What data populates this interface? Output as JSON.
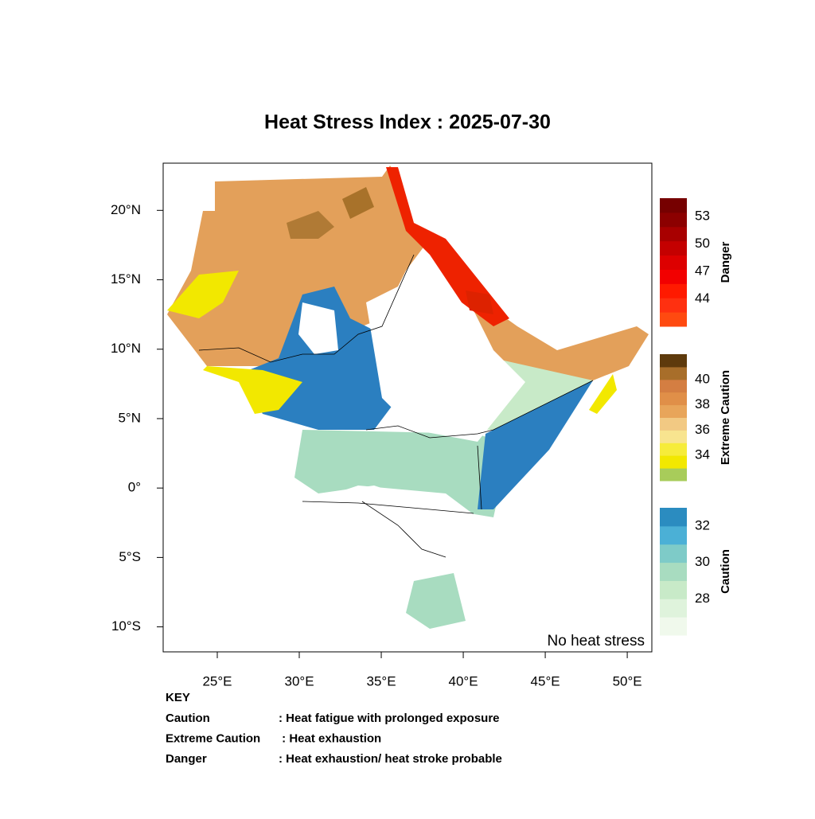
{
  "map": {
    "title": "Heat Stress Index : 2025-07-30",
    "xlim": [
      21.7,
      51.5
    ],
    "ylim": [
      -11.8,
      23.4
    ],
    "xticks": [
      {
        "value": 25,
        "label": "25°E"
      },
      {
        "value": 30,
        "label": "30°E"
      },
      {
        "value": 35,
        "label": "35°E"
      },
      {
        "value": 40,
        "label": "40°E"
      },
      {
        "value": 45,
        "label": "45°E"
      },
      {
        "value": 50,
        "label": "50°E"
      }
    ],
    "yticks": [
      {
        "value": 20,
        "label": "20°N"
      },
      {
        "value": 15,
        "label": "15°N"
      },
      {
        "value": 10,
        "label": "10°N"
      },
      {
        "value": 5,
        "label": "5°N"
      },
      {
        "value": 0,
        "label": "0°"
      },
      {
        "value": -5,
        "label": "5°S"
      },
      {
        "value": -10,
        "label": "10°S"
      }
    ],
    "annotation": "No heat stress",
    "colorbars": [
      {
        "name": "Danger",
        "lim": [
          41,
          55
        ],
        "ticks": [
          53,
          50,
          47,
          44
        ],
        "colors": [
          "#ff4a10",
          "#ff3010",
          "#ff1a00",
          "#f20000",
          "#dd0000",
          "#c40000",
          "#a80000",
          "#8c0000",
          "#760000"
        ]
      },
      {
        "name": "Extreme Caution",
        "lim": [
          32,
          42
        ],
        "ticks": [
          40,
          38,
          36,
          34
        ],
        "colors": [
          "#a8cc5a",
          "#f2e800",
          "#f6ec3a",
          "#f8e48f",
          "#f2c983",
          "#e8a55a",
          "#e08f48",
          "#d47e42",
          "#a86e2a",
          "#5e3a0c"
        ]
      },
      {
        "name": "Caution",
        "lim": [
          26,
          33
        ],
        "ticks": [
          32,
          30,
          28
        ],
        "colors": [
          "#f0f9ec",
          "#dff3dc",
          "#c8eac8",
          "#a8dcc0",
          "#7ecbc8",
          "#4bb0d6",
          "#2b8cc0"
        ]
      }
    ],
    "key": {
      "title": "KEY",
      "rows": [
        {
          "term": "Caution",
          "meaning": ": Heat fatigue with prolonged exposure"
        },
        {
          "term": "Extreme Caution",
          "meaning": " : Heat exhaustion"
        },
        {
          "term": "Danger",
          "meaning": ": Heat exhaustion/ heat stroke probable"
        }
      ]
    }
  }
}
